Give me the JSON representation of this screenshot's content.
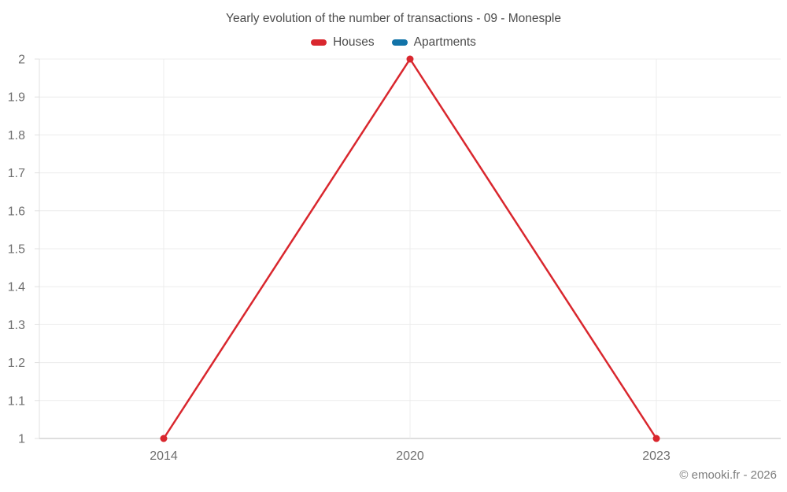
{
  "page": {
    "watermark": "© emooki.fr - 2026"
  },
  "chart_data": {
    "type": "line",
    "title": "Yearly evolution of the number of transactions - 09 - Monesple",
    "categories": [
      "2014",
      "2020",
      "2023"
    ],
    "series": [
      {
        "name": "Houses",
        "color": "#d9272e",
        "values": [
          1,
          2,
          1
        ]
      },
      {
        "name": "Apartments",
        "color": "#1273a8",
        "values": []
      }
    ],
    "xlabel": "",
    "ylabel": "",
    "ylim": [
      1,
      2
    ],
    "yticks": [
      "1",
      "1.1",
      "1.2",
      "1.3",
      "1.4",
      "1.5",
      "1.6",
      "1.7",
      "1.8",
      "1.9",
      "2"
    ],
    "grid": true,
    "legend_position": "top",
    "marker": "circle",
    "colors": {
      "grid_line": "#ececec",
      "axis_line": "#c9c9c9",
      "plot_border": "#e0e0e0",
      "axis_label": "#6f6f6f"
    }
  }
}
